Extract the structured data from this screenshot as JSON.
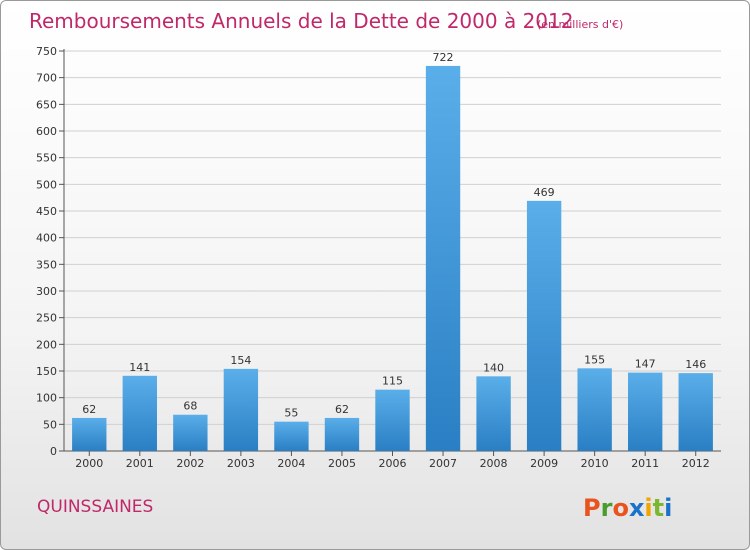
{
  "header": {
    "title": "Remboursements Annuels de la Dette de 2000 à 2012",
    "subtitle": "(en milliers d'€)"
  },
  "footer": {
    "commune": "QUINSSAINES",
    "logo_text": "Proxiti",
    "logo_colors": [
      "#e9531d",
      "#4a9c2d",
      "#e9531d",
      "#1a73c9",
      "#f0a500",
      "#7cb82f",
      "#1a73c9"
    ]
  },
  "colors": {
    "bar_light": "#5aaee9",
    "bar_dark": "#2a7fc4",
    "accent": "#c0286a"
  },
  "chart_data": {
    "type": "bar",
    "title": "Remboursements Annuels de la Dette de 2000 à 2012",
    "subtitle": "(en milliers d'€)",
    "categories": [
      "2000",
      "2001",
      "2002",
      "2003",
      "2004",
      "2005",
      "2006",
      "2007",
      "2008",
      "2009",
      "2010",
      "2011",
      "2012"
    ],
    "values": [
      62,
      141,
      68,
      154,
      55,
      62,
      115,
      722,
      140,
      469,
      155,
      147,
      146
    ],
    "ylim": [
      0,
      750
    ],
    "yticks": [
      0,
      50,
      100,
      150,
      200,
      250,
      300,
      350,
      400,
      450,
      500,
      550,
      600,
      650,
      700,
      750
    ],
    "grid": true,
    "data_labels": true
  }
}
